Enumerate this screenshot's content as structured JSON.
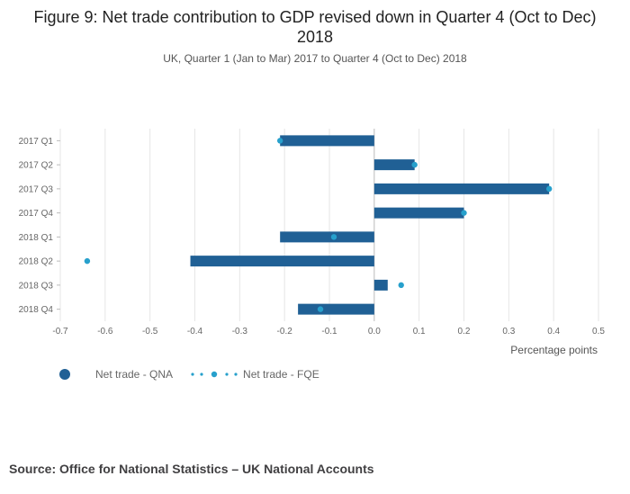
{
  "chart_data": {
    "type": "bar",
    "orientation": "horizontal",
    "title": "Figure 9: Net trade contribution to GDP revised down in Quarter 4 (Oct to Dec) 2018",
    "subtitle": "UK, Quarter 1 (Jan to Mar) 2017 to Quarter 4 (Oct to Dec) 2018",
    "categories": [
      "2017 Q1",
      "2017 Q2",
      "2017 Q3",
      "2017 Q4",
      "2018 Q1",
      "2018 Q2",
      "2018 Q3",
      "2018 Q4"
    ],
    "series": [
      {
        "name": "Net trade - QNA",
        "kind": "bar",
        "color": "#206095",
        "values": [
          -0.21,
          0.09,
          0.39,
          0.2,
          -0.21,
          -0.41,
          0.03,
          -0.17
        ]
      },
      {
        "name": "Net trade - FQE",
        "kind": "dot",
        "color": "#27a0cc",
        "values": [
          -0.21,
          0.09,
          0.39,
          0.2,
          -0.09,
          -0.64,
          0.06,
          -0.12
        ]
      }
    ],
    "xlim": [
      -0.7,
      0.5
    ],
    "xticks": [
      "-0.7",
      "-0.6",
      "-0.5",
      "-0.4",
      "-0.3",
      "-0.2",
      "-0.1",
      "0.0",
      "0.1",
      "0.2",
      "0.3",
      "0.4",
      "0.5"
    ],
    "xlabel": "Percentage points",
    "ylabel": "",
    "grid": true,
    "legend": "bottom-left"
  },
  "source": "Source: Office for National Statistics – UK National Accounts"
}
